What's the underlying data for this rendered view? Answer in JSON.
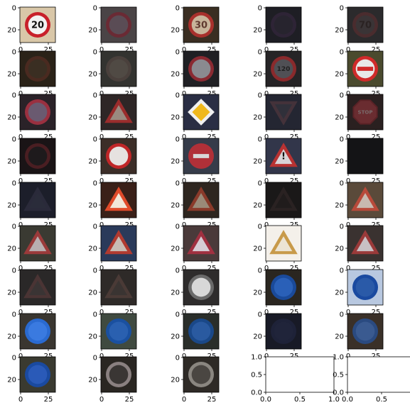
{
  "figure": {
    "rows": 9,
    "cols": 5,
    "image_tick_labels": {
      "x": [
        "0",
        "25"
      ],
      "y": [
        "0",
        "20"
      ]
    },
    "empty_axes_tick_labels": {
      "x": [
        "0.0",
        "0.5",
        "1.0"
      ],
      "y": [
        "0.0",
        "0.5",
        "1.0"
      ]
    }
  },
  "panels": [
    {
      "kind": "image",
      "bg": "#d9c7a8",
      "shape": "circle",
      "ring": "#c8202a",
      "fill": "#f2f2f2",
      "glyph": "20",
      "glyph_color": "#111111"
    },
    {
      "kind": "image",
      "bg": "#4a4446",
      "shape": "circle",
      "ring": "#6a2a34",
      "fill": "#5a4c55",
      "glyph": "",
      "glyph_color": "#3a2e33"
    },
    {
      "kind": "image",
      "bg": "#3a2e22",
      "shape": "circle",
      "ring": "#a8302c",
      "fill": "#c8b49a",
      "glyph": "30",
      "glyph_color": "#603a30"
    },
    {
      "kind": "image",
      "bg": "#1e1e24",
      "shape": "circle",
      "ring": "#2e2436",
      "fill": "#27242e",
      "glyph": "",
      "glyph_color": "#2a2a2e"
    },
    {
      "kind": "image",
      "bg": "#2b2a2c",
      "shape": "circle",
      "ring": "#4a2c2e",
      "fill": "#3a3436",
      "glyph": "70",
      "glyph_color": "#2a2222"
    },
    {
      "kind": "image",
      "bg": "#2a2218",
      "shape": "circle",
      "ring": "#4a2a20",
      "fill": "#3a2e22",
      "glyph": "",
      "glyph_color": "#333333"
    },
    {
      "kind": "image",
      "bg": "#333330",
      "shape": "circle",
      "ring": "#4a403c",
      "fill": "#504a44",
      "glyph": "",
      "glyph_color": "#222222"
    },
    {
      "kind": "image",
      "bg": "#202024",
      "shape": "circle",
      "ring": "#8a2a32",
      "fill": "#8a8a90",
      "glyph": "",
      "glyph_color": "#222222"
    },
    {
      "kind": "image",
      "bg": "#262426",
      "shape": "circle",
      "ring": "#8a2a2c",
      "fill": "#505055",
      "glyph": "120",
      "glyph_color": "#202020"
    },
    {
      "kind": "image",
      "bg": "#4a4a2e",
      "shape": "noentry",
      "ring": "#d02a2a",
      "fill": "#e8e8e8",
      "glyph": "",
      "glyph_color": "#d02a2a"
    },
    {
      "kind": "image",
      "bg": "#2a2228",
      "shape": "circle",
      "ring": "#9a3040",
      "fill": "#6a5a70",
      "glyph": "",
      "glyph_color": "#333333"
    },
    {
      "kind": "image",
      "bg": "#2e2626",
      "shape": "triangle",
      "ring": "#9a2c2c",
      "fill": "#9a8a80",
      "glyph": "",
      "glyph_color": "#222222"
    },
    {
      "kind": "image",
      "bg": "#2a2e44",
      "shape": "diamond",
      "ring": "#f0f0f0",
      "fill": "#f0b81c",
      "glyph": "",
      "glyph_color": "#000000"
    },
    {
      "kind": "image",
      "bg": "#242632",
      "shape": "invtriangle",
      "ring": "#44323a",
      "fill": "#30303a",
      "glyph": "",
      "glyph_color": "#222222"
    },
    {
      "kind": "image",
      "bg": "#2a2020",
      "shape": "octagon",
      "ring": "#5a2226",
      "fill": "#6a2c30",
      "glyph": "STOP",
      "glyph_color": "#7a6a6a"
    },
    {
      "kind": "image",
      "bg": "#1a1416",
      "shape": "circle",
      "ring": "#4a1e22",
      "fill": "#1e1a1c",
      "glyph": "",
      "glyph_color": "#222222"
    },
    {
      "kind": "image",
      "bg": "#3c2e28",
      "shape": "circle",
      "ring": "#c02628",
      "fill": "#e6e2e0",
      "glyph": "",
      "glyph_color": "#222222"
    },
    {
      "kind": "image",
      "bg": "#363c4a",
      "shape": "noentry",
      "ring": "#b03038",
      "fill": "#b03038",
      "glyph": "",
      "glyph_color": "#d8d8d8"
    },
    {
      "kind": "image",
      "bg": "#32364a",
      "shape": "triangle",
      "ring": "#b83232",
      "fill": "#d8d4d8",
      "glyph": "!",
      "glyph_color": "#111111"
    },
    {
      "kind": "image",
      "bg": "#141416",
      "shape": "none",
      "ring": "#141416",
      "fill": "#141416",
      "glyph": "",
      "glyph_color": "#141416"
    },
    {
      "kind": "image",
      "bg": "#1c1e2a",
      "shape": "triangle",
      "ring": "#2a2a3a",
      "fill": "#2a2c3a",
      "glyph": "",
      "glyph_color": "#222222"
    },
    {
      "kind": "image",
      "bg": "#3a2018",
      "shape": "triangle",
      "ring": "#e04a2a",
      "fill": "#f2e6d8",
      "glyph": "",
      "glyph_color": "#222222"
    },
    {
      "kind": "image",
      "bg": "#2e2620",
      "shape": "triangle",
      "ring": "#8a3a2a",
      "fill": "#9a8a78",
      "glyph": "",
      "glyph_color": "#222222"
    },
    {
      "kind": "image",
      "bg": "#1a1818",
      "shape": "triangle",
      "ring": "#2a2222",
      "fill": "#201c1c",
      "glyph": "",
      "glyph_color": "#222222"
    },
    {
      "kind": "image",
      "bg": "#5a4a3a",
      "shape": "triangle",
      "ring": "#b84a3a",
      "fill": "#c8bab0",
      "glyph": "",
      "glyph_color": "#222222"
    },
    {
      "kind": "image",
      "bg": "#3a3a32",
      "shape": "triangle",
      "ring": "#9a3a3a",
      "fill": "#b8aeb0",
      "glyph": "",
      "glyph_color": "#222222"
    },
    {
      "kind": "image",
      "bg": "#2a3a5a",
      "shape": "triangle",
      "ring": "#b03a30",
      "fill": "#c8bcb4",
      "glyph": "",
      "glyph_color": "#222222"
    },
    {
      "kind": "image",
      "bg": "#4a3a3a",
      "shape": "triangle",
      "ring": "#a03040",
      "fill": "#d6ccd4",
      "glyph": "",
      "glyph_color": "#222222"
    },
    {
      "kind": "image",
      "bg": "#f4f0ea",
      "shape": "triangle",
      "ring": "#c89a4a",
      "fill": "#ece4d4",
      "glyph": "",
      "glyph_color": "#222222"
    },
    {
      "kind": "image",
      "bg": "#3a3230",
      "shape": "triangle",
      "ring": "#9a3a3a",
      "fill": "#c8c0c4",
      "glyph": "",
      "glyph_color": "#222222"
    },
    {
      "kind": "image",
      "bg": "#2a2828",
      "shape": "triangle",
      "ring": "#4a3434",
      "fill": "#3a3434",
      "glyph": "",
      "glyph_color": "#222222"
    },
    {
      "kind": "image",
      "bg": "#2e2a28",
      "shape": "triangle",
      "ring": "#4a3a36",
      "fill": "#3a3432",
      "glyph": "",
      "glyph_color": "#222222"
    },
    {
      "kind": "image",
      "bg": "#2e2c2c",
      "shape": "circle",
      "ring": "#6a6a6a",
      "fill": "#d8d8d8",
      "glyph": "",
      "glyph_color": "#222222"
    },
    {
      "kind": "image",
      "bg": "#2a2620",
      "shape": "circle",
      "ring": "#1a4a9a",
      "fill": "#2a60b8",
      "glyph": "",
      "glyph_color": "#f0f0f0"
    },
    {
      "kind": "image",
      "bg": "#b8c8e0",
      "shape": "circle",
      "ring": "#1a4aa0",
      "fill": "#2a5aa8",
      "glyph": "",
      "glyph_color": "#f0f0f0"
    },
    {
      "kind": "image",
      "bg": "#3a3630",
      "shape": "circle",
      "ring": "#2a6ad0",
      "fill": "#3a7ae0",
      "glyph": "",
      "glyph_color": "#f0f0f0"
    },
    {
      "kind": "image",
      "bg": "#404a40",
      "shape": "circle",
      "ring": "#1a50a0",
      "fill": "#2a60b0",
      "glyph": "",
      "glyph_color": "#f0f0f0"
    },
    {
      "kind": "image",
      "bg": "#2a2e2a",
      "shape": "circle",
      "ring": "#1a4888",
      "fill": "#2a5aa0",
      "glyph": "",
      "glyph_color": "#d0d0d0"
    },
    {
      "kind": "image",
      "bg": "#181a26",
      "shape": "circle",
      "ring": "#1e2238",
      "fill": "#20243a",
      "glyph": "",
      "glyph_color": "#2a2e48"
    },
    {
      "kind": "image",
      "bg": "#3a3028",
      "shape": "circle",
      "ring": "#2a4a80",
      "fill": "#3a5a90",
      "glyph": "",
      "glyph_color": "#e0e0e0"
    },
    {
      "kind": "image",
      "bg": "#3a3a30",
      "shape": "circle",
      "ring": "#1a4aa0",
      "fill": "#2a5ab8",
      "glyph": "",
      "glyph_color": "#f0f0f0"
    },
    {
      "kind": "image",
      "bg": "#2a2622",
      "shape": "circle",
      "ring": "#8a8080",
      "fill": "#3a3634",
      "glyph": "",
      "glyph_color": "#dcdcdc"
    },
    {
      "kind": "image",
      "bg": "#2e2a26",
      "shape": "circle",
      "ring": "#8a8680",
      "fill": "#4a4642",
      "glyph": "",
      "glyph_color": "#d8d8d8"
    },
    {
      "kind": "empty"
    },
    {
      "kind": "empty"
    }
  ]
}
